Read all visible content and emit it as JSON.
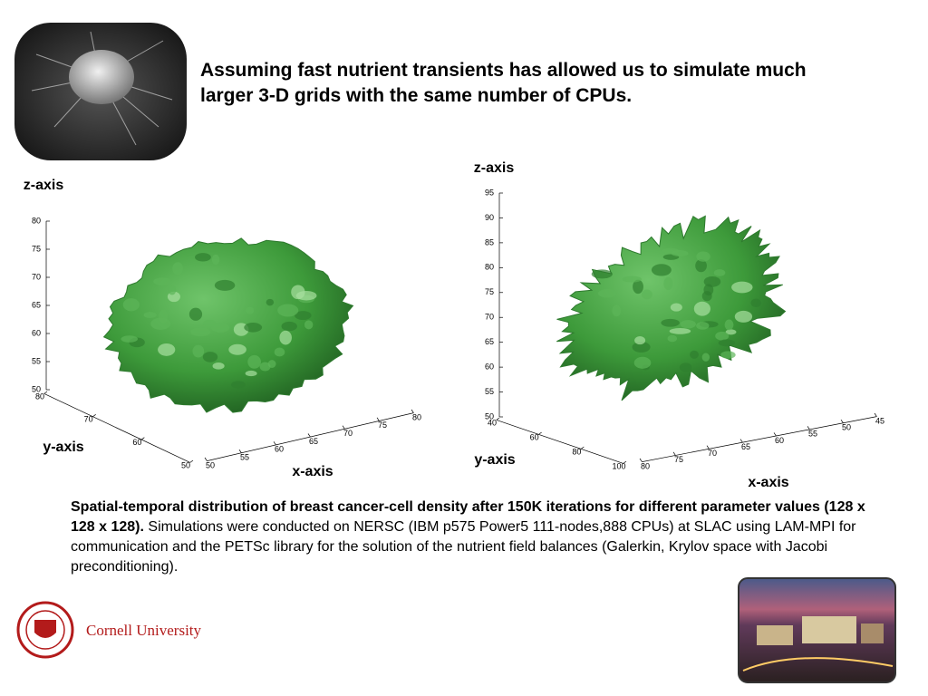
{
  "header": {
    "title": "Assuming fast nutrient transients has allowed us to simulate much larger 3-D grids with the same number of CPUs."
  },
  "figures": [
    {
      "z_label": "z-axis",
      "y_label": "y-axis",
      "x_label": "x-axis",
      "zticks": [
        50,
        55,
        60,
        65,
        70,
        75,
        80
      ],
      "yticks": [
        80,
        70,
        60,
        50
      ],
      "xticks": [
        50,
        55,
        60,
        65,
        70,
        75,
        80
      ]
    },
    {
      "z_label": "z-axis",
      "y_label": "y-axis",
      "x_label": "x-axis",
      "zticks": [
        50,
        55,
        60,
        65,
        70,
        75,
        80,
        85,
        90,
        95
      ],
      "yticks": [
        40,
        60,
        80,
        100
      ],
      "xticks": [
        80,
        75,
        70,
        65,
        60,
        55,
        50,
        45
      ]
    }
  ],
  "caption": {
    "bold": "Spatial-temporal distribution of breast cancer-cell density after 150K iterations for different parameter values (128 x 128 x 128).",
    "text": " Simulations were conducted on NERSC (IBM p575 Power5 111-nodes,888 CPUs) at SLAC using LAM-MPI for communication and the PETSc library for the solution of the nutrient field balances (Galerkin, Krylov space with Jacobi preconditioning)."
  },
  "logo": {
    "text": "Cornell University"
  }
}
